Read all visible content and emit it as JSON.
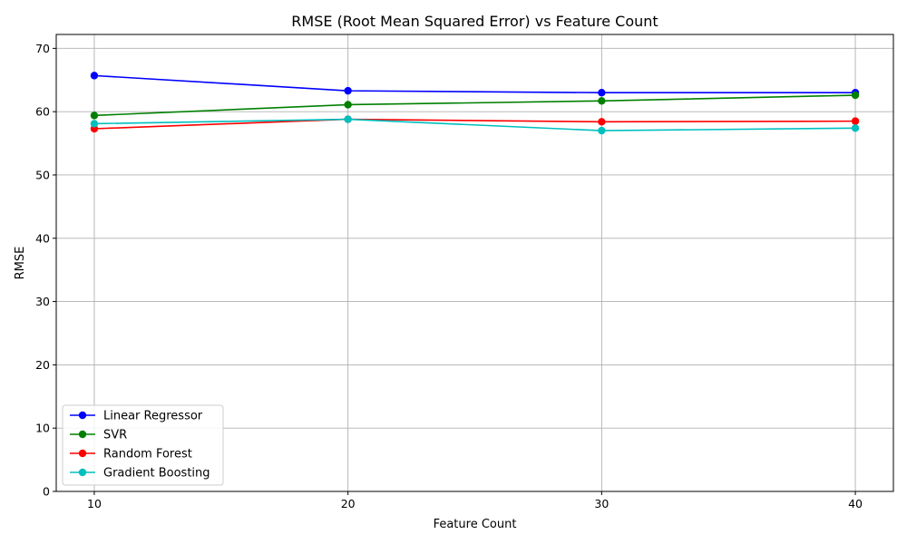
{
  "chart_data": {
    "type": "line",
    "title": "RMSE (Root Mean Squared Error) vs Feature Count",
    "xlabel": "Feature Count",
    "ylabel": "RMSE",
    "x": [
      10,
      20,
      30,
      40
    ],
    "xticks": [
      "10",
      "20",
      "30",
      "40"
    ],
    "yticks": [
      "0",
      "10",
      "20",
      "30",
      "40",
      "50",
      "60",
      "70"
    ],
    "xlim": [
      8.5,
      41.5
    ],
    "ylim": [
      0,
      72.2
    ],
    "grid": true,
    "legend_position": "lower-left",
    "series": [
      {
        "name": "Linear Regressor",
        "color": "#0000ff",
        "values": [
          65.7,
          63.3,
          63.0,
          63.0
        ]
      },
      {
        "name": "SVR",
        "color": "#008000",
        "values": [
          59.4,
          61.1,
          61.7,
          62.6
        ]
      },
      {
        "name": "Random Forest",
        "color": "#ff0000",
        "values": [
          57.3,
          58.8,
          58.4,
          58.5
        ]
      },
      {
        "name": "Gradient Boosting",
        "color": "#00bfbf",
        "values": [
          58.1,
          58.8,
          57.0,
          57.4
        ]
      }
    ]
  }
}
